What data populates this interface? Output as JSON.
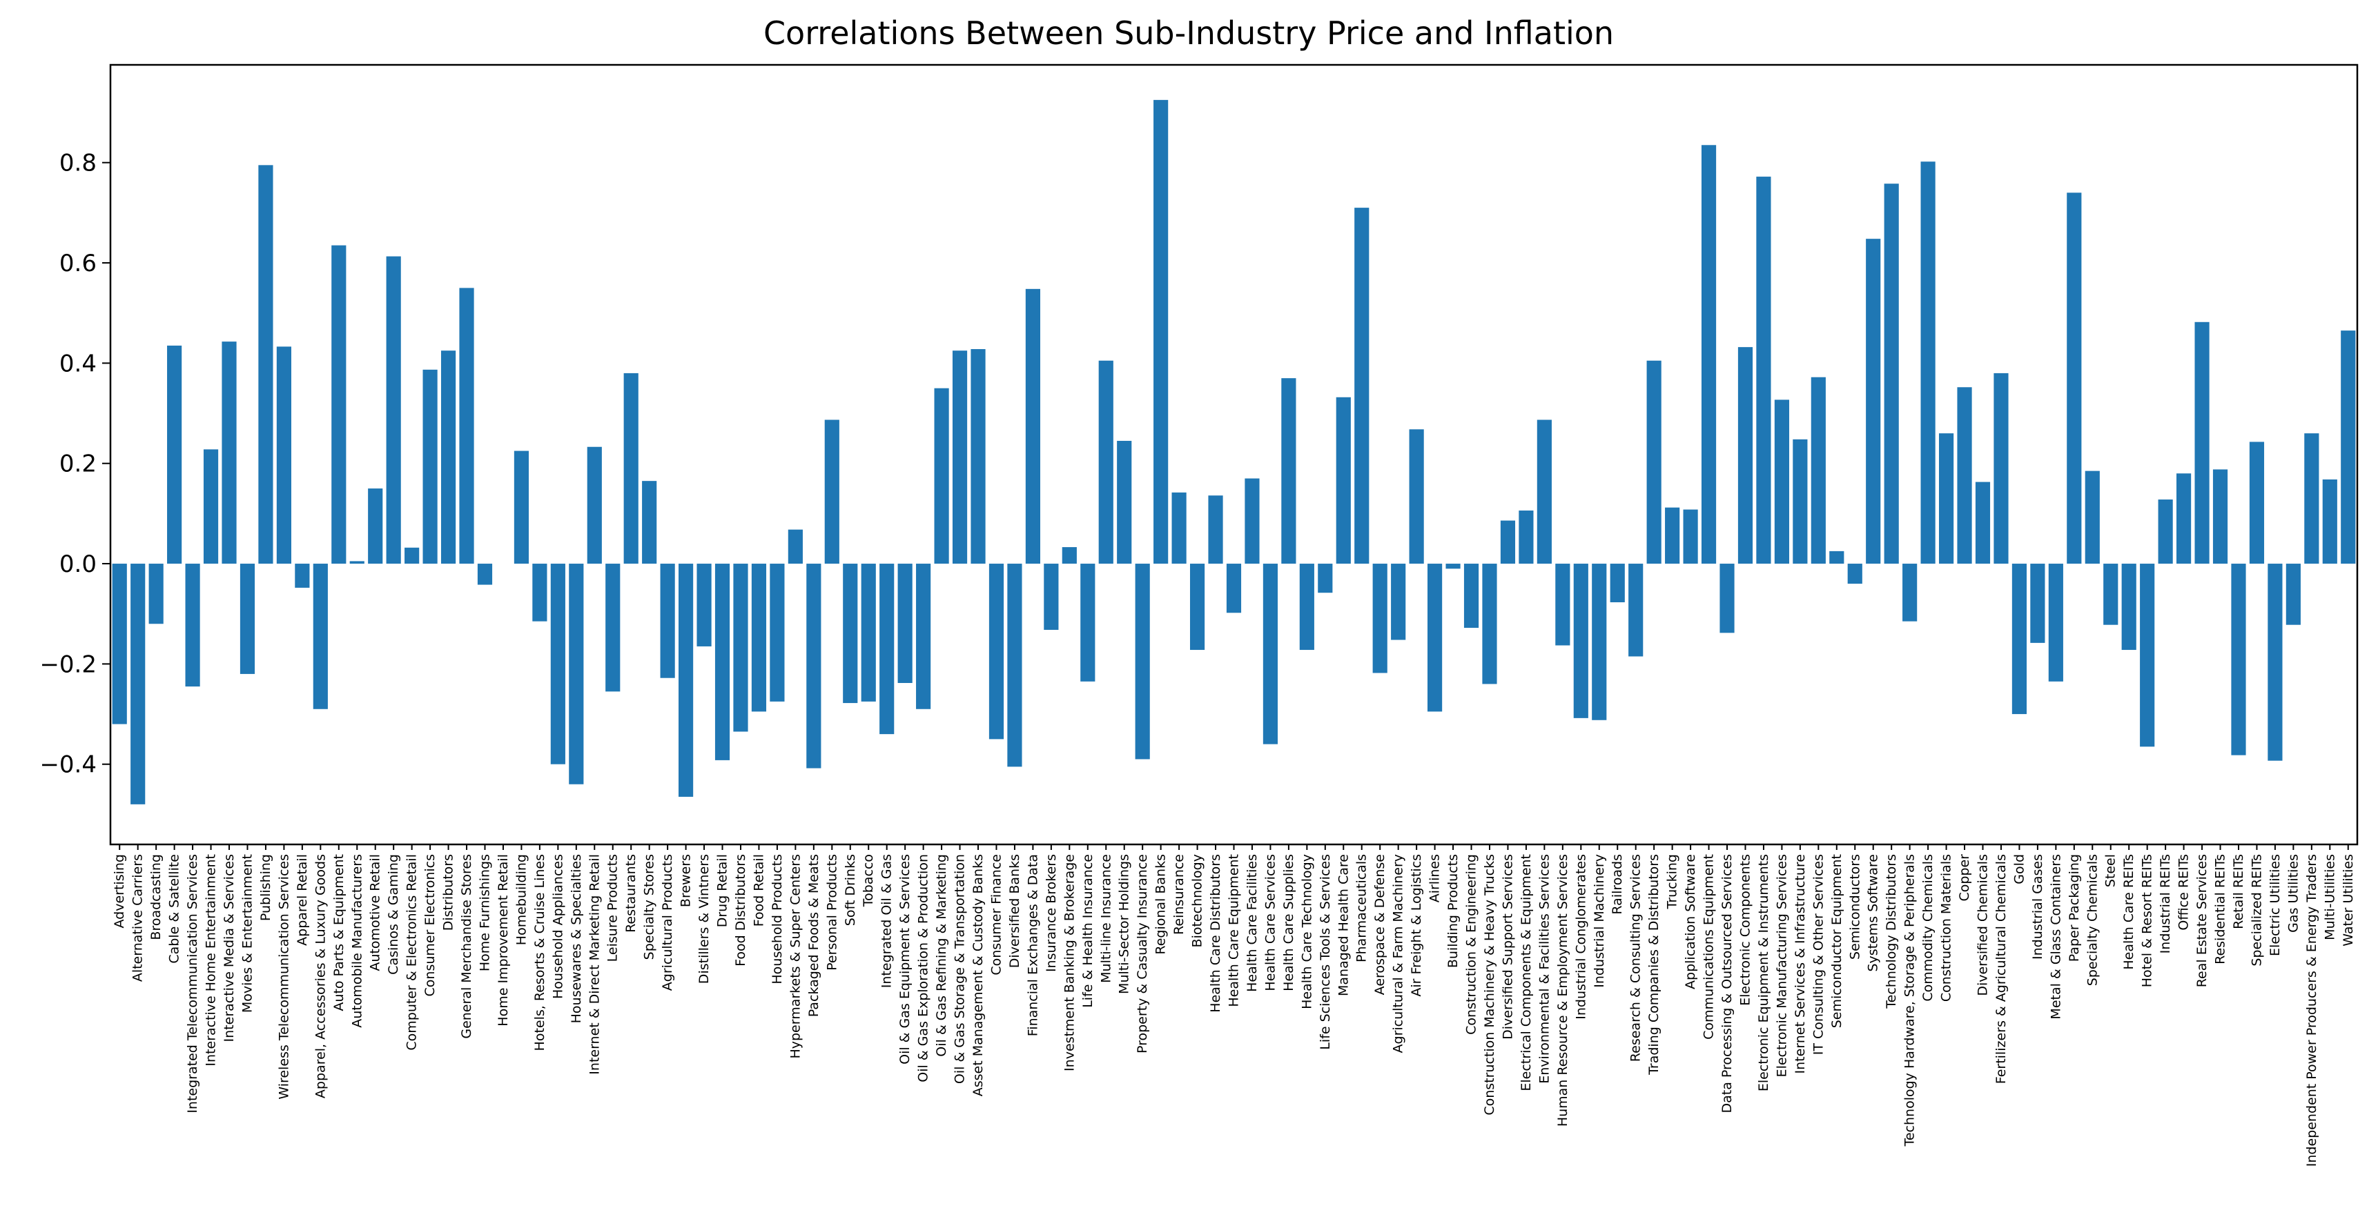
{
  "chart_data": {
    "type": "bar",
    "title": "Correlations Between Sub-Industry Price and Inflation",
    "xlabel": "",
    "ylabel": "",
    "ylim": [
      -0.56,
      0.995
    ],
    "yticks": [
      -0.4,
      -0.2,
      0.0,
      0.2,
      0.4,
      0.6,
      0.8
    ],
    "ytick_labels": [
      "−0.4",
      "−0.2",
      "0.0",
      "0.2",
      "0.4",
      "0.6",
      "0.8"
    ],
    "grid": false,
    "legend": "none",
    "color": "#1f77b4",
    "categories": [
      "Advertising",
      "Alternative Carriers",
      "Broadcasting",
      "Cable & Satellite",
      "Integrated Telecommunication Services",
      "Interactive Home Entertainment",
      "Interactive Media & Services",
      "Movies & Entertainment",
      "Publishing",
      "Wireless Telecommunication Services",
      "Apparel Retail",
      "Apparel, Accessories & Luxury Goods",
      "Auto Parts & Equipment",
      "Automobile Manufacturers",
      "Automotive Retail",
      "Casinos & Gaming",
      "Computer & Electronics Retail",
      "Consumer Electronics",
      "Distributors",
      "General Merchandise Stores",
      "Home Furnishings",
      "Home Improvement Retail",
      "Homebuilding",
      "Hotels, Resorts & Cruise Lines",
      "Household Appliances",
      "Housewares & Specialties",
      "Internet & Direct Marketing Retail",
      "Leisure Products",
      "Restaurants",
      "Specialty Stores",
      "Agricultural Products",
      "Brewers",
      "Distillers & Vintners",
      "Drug Retail",
      "Food Distributors",
      "Food Retail",
      "Household Products",
      "Hypermarkets & Super Centers",
      "Packaged Foods & Meats",
      "Personal Products",
      "Soft Drinks",
      "Tobacco",
      "Integrated Oil & Gas",
      "Oil & Gas Equipment & Services",
      "Oil & Gas Exploration & Production",
      "Oil & Gas Refining & Marketing",
      "Oil & Gas Storage & Transportation",
      "Asset Management & Custody Banks",
      "Consumer Finance",
      "Diversified Banks",
      "Financial Exchanges & Data",
      "Insurance Brokers",
      "Investment Banking & Brokerage",
      "Life & Health Insurance",
      "Multi-line Insurance",
      "Multi-Sector Holdings",
      "Property & Casualty Insurance",
      "Regional Banks",
      "Reinsurance",
      "Biotechnology",
      "Health Care Distributors",
      "Health Care Equipment",
      "Health Care Facilities",
      "Health Care Services",
      "Health Care Supplies",
      "Health Care Technology",
      "Life Sciences Tools & Services",
      "Managed Health Care",
      "Pharmaceuticals",
      "Aerospace & Defense",
      "Agricultural & Farm Machinery",
      "Air Freight & Logistics",
      "Airlines",
      "Building Products",
      "Construction & Engineering",
      "Construction Machinery & Heavy Trucks",
      "Diversified Support Services",
      "Electrical Components & Equipment",
      "Environmental & Facilities Services",
      "Human Resource & Employment Services",
      "Industrial Conglomerates",
      "Industrial Machinery",
      "Railroads",
      "Research & Consulting Services",
      "Trading Companies & Distributors",
      "Trucking",
      "Application Software",
      "Communications Equipment",
      "Data Processing & Outsourced Services",
      "Electronic Components",
      "Electronic Equipment & Instruments",
      "Electronic Manufacturing Services",
      "Internet Services & Infrastructure",
      "IT Consulting & Other Services",
      "Semiconductor Equipment",
      "Semiconductors",
      "Systems Software",
      "Technology Distributors",
      "Technology Hardware, Storage & Peripherals",
      "Commodity Chemicals",
      "Construction Materials",
      "Copper",
      "Diversified Chemicals",
      "Fertilizers & Agricultural Chemicals",
      "Gold",
      "Industrial Gases",
      "Metal & Glass Containers",
      "Paper Packaging",
      "Specialty Chemicals",
      "Steel",
      "Health Care REITs",
      "Hotel & Resort REITs",
      "Industrial REITs",
      "Office REITs",
      "Real Estate Services",
      "Residential REITs",
      "Retail REITs",
      "Specialized REITs",
      "Electric Utilities",
      "Gas Utilities",
      "Independent Power Producers & Energy Traders",
      "Multi-Utilities",
      "Water Utilities"
    ],
    "values": [
      -0.32,
      -0.48,
      -0.12,
      0.435,
      -0.245,
      0.228,
      0.443,
      -0.22,
      0.795,
      0.433,
      -0.048,
      -0.29,
      0.635,
      0.005,
      0.15,
      0.613,
      0.032,
      0.387,
      0.425,
      0.55,
      -0.042,
      0.0,
      0.225,
      -0.115,
      -0.4,
      -0.44,
      0.233,
      -0.255,
      0.38,
      0.165,
      -0.228,
      -0.465,
      -0.165,
      -0.392,
      -0.335,
      -0.295,
      -0.275,
      0.068,
      -0.408,
      0.287,
      -0.278,
      -0.275,
      -0.34,
      -0.238,
      -0.29,
      0.35,
      0.425,
      0.428,
      -0.35,
      -0.405,
      0.548,
      -0.132,
      0.033,
      -0.235,
      0.405,
      0.245,
      -0.39,
      0.925,
      0.142,
      -0.172,
      0.136,
      -0.098,
      0.17,
      -0.36,
      0.37,
      -0.172,
      -0.058,
      0.332,
      0.71,
      -0.218,
      -0.152,
      0.268,
      -0.295,
      -0.01,
      -0.128,
      -0.24,
      0.086,
      0.106,
      0.287,
      -0.163,
      -0.308,
      -0.312,
      -0.077,
      -0.185,
      0.405,
      0.112,
      0.108,
      0.835,
      -0.138,
      0.432,
      0.772,
      0.327,
      0.248,
      0.372,
      0.025,
      -0.04,
      0.648,
      0.758,
      -0.115,
      0.802,
      0.26,
      0.352,
      0.163,
      0.38,
      -0.3,
      -0.158,
      -0.235,
      0.74,
      0.185,
      -0.122,
      -0.172,
      -0.365,
      0.128,
      0.18,
      0.482,
      0.188,
      -0.382,
      0.243,
      -0.393,
      -0.122,
      0.26,
      0.168,
      0.465
    ]
  }
}
